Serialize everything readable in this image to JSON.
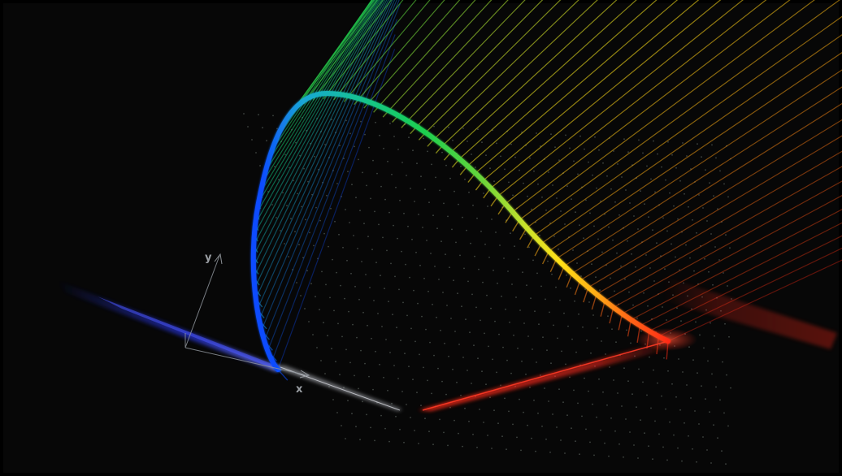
{
  "scene": {
    "background_color": "#000000",
    "frame_color": "#0a0a0a",
    "axis_color": "#8d939a",
    "dot_color": "#6f7a73",
    "blue_beam_color": "#2c3cff",
    "red_beam_color": "#ff2a1a",
    "white_beam_color": "#d8d8e0",
    "spectral_gradient": [
      "#0c4cff",
      "#1aa7d6",
      "#12c48a",
      "#1ccf4f",
      "#62d43b",
      "#c8e22c",
      "#ffe019",
      "#ffb114",
      "#ff6a14",
      "#ff2b14"
    ]
  },
  "axes": {
    "x_label": "x",
    "y_label": "y",
    "x_icon": "x-axis-arrow",
    "y_icon": "y-axis-arrow"
  }
}
